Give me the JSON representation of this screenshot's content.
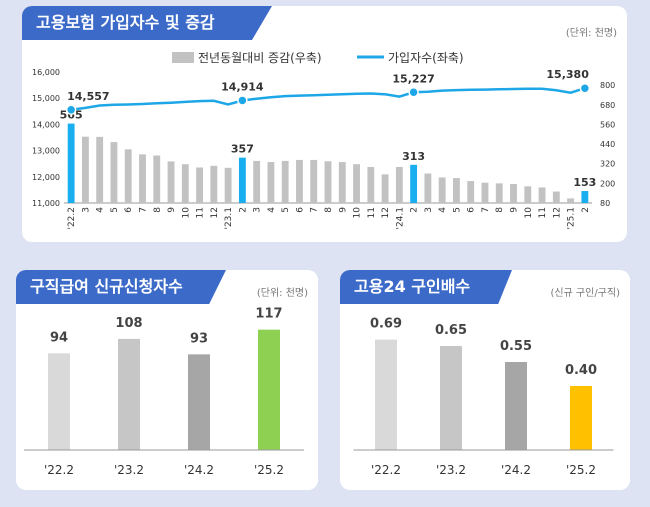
{
  "top": {
    "title": "고용보험 가입자수 및 증감",
    "unit": "(단위: 천명)",
    "legend_bar": "전년동월대비 증감(우축)",
    "legend_line": "가입자수(좌축)"
  },
  "bottom_left": {
    "title": "구직급여 신규신청자수",
    "unit": "(단위: 천명)"
  },
  "bottom_right": {
    "title": "고용24 구인배수",
    "unit": "(신규 구인/구직)"
  },
  "colors": {
    "banner": "#3c6ac8",
    "line": "#1ea7e6",
    "bar_gray": "#c2c2c2",
    "bar_highlight": "#18aef0",
    "green": "#8ed152",
    "yellow": "#ffc000"
  },
  "chart_data": [
    {
      "type": "bar+line",
      "x": [
        "'22.2",
        "3",
        "4",
        "5",
        "6",
        "7",
        "8",
        "9",
        "10",
        "11",
        "12",
        "'23.1",
        "2",
        "3",
        "4",
        "5",
        "6",
        "7",
        "8",
        "9",
        "10",
        "11",
        "12",
        "'24.1",
        "2",
        "3",
        "4",
        "5",
        "6",
        "7",
        "8",
        "9",
        "10",
        "11",
        "12",
        "'25.1",
        "2"
      ],
      "series": [
        {
          "name": "전년동월대비 증감(우축)",
          "type": "bar",
          "axis": "right",
          "values": [
            565,
            485,
            484,
            452,
            408,
            377,
            370,
            334,
            317,
            297,
            307,
            295,
            357,
            337,
            330,
            337,
            343,
            343,
            335,
            330,
            317,
            300,
            255,
            300,
            313,
            260,
            236,
            232,
            214,
            204,
            200,
            196,
            182,
            175,
            150,
            108,
            153
          ],
          "highlight": [
            0,
            12,
            24,
            36
          ],
          "labels": {
            "0": "565",
            "12": "357",
            "24": "313",
            "36": "153"
          }
        },
        {
          "name": "가입자수(좌축)",
          "type": "line",
          "axis": "left",
          "values": [
            14557,
            14630,
            14720,
            14750,
            14760,
            14780,
            14810,
            14830,
            14860,
            14890,
            14900,
            14760,
            14914,
            14980,
            15040,
            15080,
            15100,
            15110,
            15130,
            15150,
            15170,
            15180,
            15150,
            15060,
            15227,
            15250,
            15290,
            15310,
            15320,
            15330,
            15340,
            15350,
            15360,
            15360,
            15300,
            15210,
            15380
          ],
          "labels": {
            "0": "14,557",
            "12": "14,914",
            "24": "15,227",
            "36": "15,380"
          }
        }
      ],
      "left_ticks": [
        "11,000",
        "12,000",
        "13,000",
        "14,000",
        "15,000",
        "16,000"
      ],
      "right_ticks": [
        "80",
        "200",
        "320",
        "440",
        "560",
        "680",
        "800"
      ],
      "ylim_left": [
        11000,
        16000
      ],
      "ylim_right": [
        80,
        880
      ]
    },
    {
      "type": "bar",
      "categories": [
        "'22.2",
        "'23.2",
        "'24.2",
        "'25.2"
      ],
      "values": [
        94,
        108,
        93,
        117
      ],
      "value_labels": [
        "94",
        "108",
        "93",
        "117"
      ],
      "colors": [
        "#d9d9d9",
        "#c6c6c6",
        "#a6a6a6",
        "#8ed152"
      ],
      "ylim": [
        0,
        140
      ]
    },
    {
      "type": "bar",
      "categories": [
        "'22.2",
        "'23.2",
        "'24.2",
        "'25.2"
      ],
      "values": [
        0.69,
        0.65,
        0.55,
        0.4
      ],
      "value_labels": [
        "0.69",
        "0.65",
        "0.55",
        "0.40"
      ],
      "colors": [
        "#d9d9d9",
        "#c6c6c6",
        "#a6a6a6",
        "#ffc000"
      ],
      "ylim": [
        0,
        0.9
      ]
    }
  ]
}
